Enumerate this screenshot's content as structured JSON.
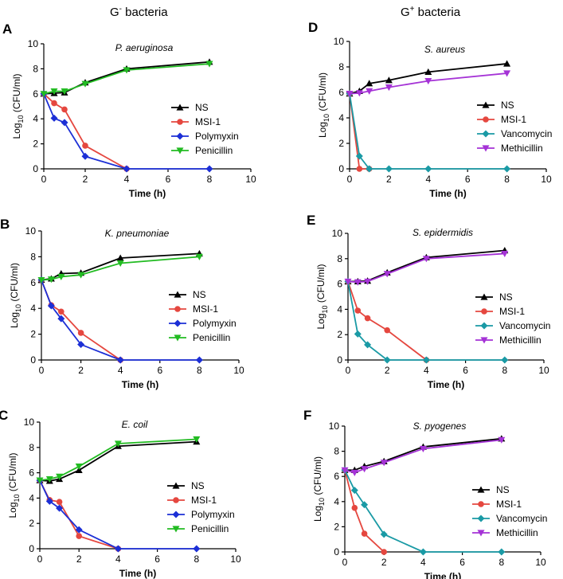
{
  "column_titles": {
    "left": {
      "base": "G",
      "sup": "-",
      "rest": " bacteria"
    },
    "right": {
      "base": "G",
      "sup": "+",
      "rest": " bacteria"
    }
  },
  "colors": {
    "NS": "#000000",
    "MSI-1": "#e5473f",
    "Polymyxin": "#1c2fd6",
    "Penicillin": "#22bb22",
    "Vancomycin": "#1a9aa5",
    "Methicillin": "#a533d6"
  },
  "chart_data": [
    {
      "type": "line",
      "panel": "A",
      "title": "P. aeruginosa",
      "xlabel": "Time (h)",
      "ylabel": {
        "pre": "Log",
        "sub": "10",
        "post": " (CFU/ml)"
      },
      "xlim": [
        0,
        10
      ],
      "ylim": [
        0,
        10
      ],
      "xticks": [
        "0",
        "2",
        "4",
        "6",
        "8",
        "10"
      ],
      "yticks": [
        "0",
        "2",
        "4",
        "6",
        "8",
        "10"
      ],
      "series": [
        {
          "name": "NS",
          "marker": "tri-up",
          "x": [
            0,
            0.5,
            1,
            2,
            4,
            8
          ],
          "y": [
            6.0,
            6.05,
            6.1,
            6.9,
            8.0,
            8.55
          ]
        },
        {
          "name": "MSI-1",
          "marker": "circle",
          "x": [
            0,
            0.5,
            1,
            2,
            4
          ],
          "y": [
            6.0,
            5.25,
            4.75,
            1.85,
            0
          ]
        },
        {
          "name": "Polymyxin",
          "marker": "diamond",
          "x": [
            0,
            0.5,
            1,
            2,
            4,
            8
          ],
          "y": [
            6.0,
            4.05,
            3.7,
            1.0,
            0,
            0
          ]
        },
        {
          "name": "Penicillin",
          "marker": "tri-down",
          "x": [
            0,
            0.5,
            1,
            2,
            4,
            8
          ],
          "y": [
            6.0,
            6.2,
            6.2,
            6.8,
            7.9,
            8.4
          ]
        }
      ]
    },
    {
      "type": "line",
      "panel": "B",
      "title": "K.  pneumoniae",
      "xlabel": "Time (h)",
      "ylabel": {
        "pre": "Log",
        "sub": "10",
        "post": " (CFU/ml)"
      },
      "xlim": [
        0,
        10
      ],
      "ylim": [
        0,
        10
      ],
      "xticks": [
        "0",
        "2",
        "4",
        "6",
        "8",
        "10"
      ],
      "yticks": [
        "0",
        "2",
        "4",
        "6",
        "8",
        "10"
      ],
      "series": [
        {
          "name": "NS",
          "marker": "tri-up",
          "x": [
            0,
            0.5,
            1,
            2,
            4,
            8
          ],
          "y": [
            6.2,
            6.3,
            6.7,
            6.75,
            7.9,
            8.25
          ]
        },
        {
          "name": "MSI-1",
          "marker": "circle",
          "x": [
            0,
            0.5,
            1,
            2,
            4
          ],
          "y": [
            6.2,
            4.25,
            3.75,
            2.1,
            0
          ]
        },
        {
          "name": "Polymyxin",
          "marker": "diamond",
          "x": [
            0,
            0.5,
            1,
            2,
            4,
            8
          ],
          "y": [
            6.2,
            4.2,
            3.2,
            1.2,
            0,
            0
          ]
        },
        {
          "name": "Penicillin",
          "marker": "tri-down",
          "x": [
            0,
            0.5,
            1,
            2,
            4,
            8
          ],
          "y": [
            6.2,
            6.25,
            6.45,
            6.6,
            7.5,
            8.0
          ]
        }
      ]
    },
    {
      "type": "line",
      "panel": "C",
      "title": "E. coil",
      "xlabel": "Time (h)",
      "ylabel": {
        "pre": "Log",
        "sub": "10",
        "post": " (CFU/ml)"
      },
      "xlim": [
        0,
        10
      ],
      "ylim": [
        0,
        10
      ],
      "xticks": [
        "0",
        "2",
        "4",
        "6",
        "8",
        "10"
      ],
      "yticks": [
        "0",
        "2",
        "4",
        "6",
        "8",
        "10"
      ],
      "series": [
        {
          "name": "NS",
          "marker": "tri-up",
          "x": [
            0,
            0.5,
            1,
            2,
            4,
            8
          ],
          "y": [
            5.4,
            5.35,
            5.5,
            6.2,
            8.1,
            8.45
          ]
        },
        {
          "name": "MSI-1",
          "marker": "circle",
          "x": [
            0,
            0.5,
            1,
            2,
            4
          ],
          "y": [
            5.4,
            3.85,
            3.7,
            1.0,
            0
          ]
        },
        {
          "name": "Polymyxin",
          "marker": "diamond",
          "x": [
            0,
            0.5,
            1,
            2,
            4,
            8
          ],
          "y": [
            5.4,
            3.75,
            3.2,
            1.5,
            0,
            0
          ]
        },
        {
          "name": "Penicillin",
          "marker": "tri-down",
          "x": [
            0,
            0.5,
            1,
            2,
            4,
            8
          ],
          "y": [
            5.4,
            5.5,
            5.7,
            6.5,
            8.3,
            8.65
          ]
        }
      ]
    },
    {
      "type": "line",
      "panel": "D",
      "title": "S. aureus",
      "xlabel": "Time (h)",
      "ylabel": {
        "pre": "Log",
        "sub": "10",
        "post": " (CFU/ml)"
      },
      "xlim": [
        0,
        10
      ],
      "ylim": [
        0,
        10
      ],
      "xticks": [
        "0",
        "2",
        "4",
        "6",
        "8",
        "10"
      ],
      "yticks": [
        "0",
        "2",
        "4",
        "6",
        "8",
        "10"
      ],
      "series": [
        {
          "name": "NS",
          "marker": "tri-up",
          "x": [
            0,
            0.5,
            1,
            2,
            4,
            8
          ],
          "y": [
            5.9,
            6.1,
            6.7,
            6.95,
            7.6,
            8.25
          ]
        },
        {
          "name": "MSI-1",
          "marker": "circle",
          "x": [
            0,
            0.5,
            1
          ],
          "y": [
            5.9,
            0,
            0
          ]
        },
        {
          "name": "Vancomycin",
          "marker": "diamond",
          "x": [
            0,
            0.5,
            1,
            2,
            4,
            8
          ],
          "y": [
            5.9,
            1.0,
            0,
            0,
            0,
            0
          ]
        },
        {
          "name": "Methicillin",
          "marker": "tri-down",
          "x": [
            0,
            0.5,
            1,
            2,
            4,
            8
          ],
          "y": [
            5.9,
            5.95,
            6.1,
            6.4,
            6.9,
            7.5
          ]
        }
      ]
    },
    {
      "type": "line",
      "panel": "E",
      "title": "S. epidermidis",
      "xlabel": "Time (h)",
      "ylabel": {
        "pre": "Log",
        "sub": "10",
        "post": " (CFU/ml)"
      },
      "xlim": [
        0,
        10
      ],
      "ylim": [
        0,
        10
      ],
      "xticks": [
        "0",
        "2",
        "4",
        "6",
        "8",
        "10"
      ],
      "yticks": [
        "0",
        "2",
        "4",
        "6",
        "8",
        "10"
      ],
      "series": [
        {
          "name": "NS",
          "marker": "tri-up",
          "x": [
            0,
            0.5,
            1,
            2,
            4,
            8
          ],
          "y": [
            6.2,
            6.2,
            6.25,
            6.9,
            8.1,
            8.65
          ]
        },
        {
          "name": "MSI-1",
          "marker": "circle",
          "x": [
            0,
            0.5,
            1,
            2,
            4
          ],
          "y": [
            6.2,
            3.9,
            3.3,
            2.35,
            0
          ]
        },
        {
          "name": "Vancomycin",
          "marker": "diamond",
          "x": [
            0,
            0.5,
            1,
            2,
            4,
            8
          ],
          "y": [
            6.2,
            2.05,
            1.2,
            0,
            0,
            0
          ]
        },
        {
          "name": "Methicillin",
          "marker": "tri-down",
          "x": [
            0,
            0.5,
            1,
            2,
            4,
            8
          ],
          "y": [
            6.2,
            6.15,
            6.2,
            6.8,
            8.0,
            8.4
          ]
        }
      ]
    },
    {
      "type": "line",
      "panel": "F",
      "title": "S. pyogenes",
      "xlabel": "Time (h)",
      "ylabel": {
        "pre": "Log",
        "sub": "10",
        "post": " (CFU/ml)"
      },
      "xlim": [
        0,
        10
      ],
      "ylim": [
        0,
        10
      ],
      "xticks": [
        "0",
        "2",
        "4",
        "6",
        "8",
        "10"
      ],
      "yticks": [
        "0",
        "2",
        "4",
        "6",
        "8",
        "10"
      ],
      "series": [
        {
          "name": "NS",
          "marker": "tri-up",
          "x": [
            0,
            0.5,
            1,
            2,
            4,
            8
          ],
          "y": [
            6.5,
            6.5,
            6.8,
            7.2,
            8.35,
            9.0
          ]
        },
        {
          "name": "MSI-1",
          "marker": "circle",
          "x": [
            0,
            0.5,
            1,
            2
          ],
          "y": [
            6.5,
            3.5,
            1.45,
            0
          ]
        },
        {
          "name": "Vancomycin",
          "marker": "diamond",
          "x": [
            0,
            0.5,
            1,
            2,
            4,
            8
          ],
          "y": [
            6.5,
            4.9,
            3.75,
            1.4,
            0,
            0
          ]
        },
        {
          "name": "Methicillin",
          "marker": "tri-down",
          "x": [
            0,
            0.5,
            1,
            2,
            4,
            8
          ],
          "y": [
            6.5,
            6.3,
            6.6,
            7.1,
            8.2,
            8.9
          ]
        }
      ]
    }
  ]
}
